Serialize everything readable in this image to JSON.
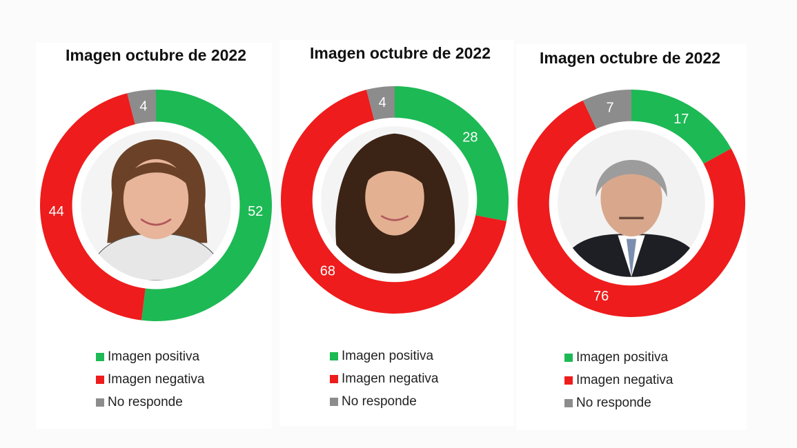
{
  "colors": {
    "positive": "#1db954",
    "negative": "#ee1c1c",
    "no_response": "#8c8c8c",
    "label_text": "#ffffff"
  },
  "legend": [
    {
      "label": "Imagen positiva",
      "color": "#1db954"
    },
    {
      "label": "Imagen negativa",
      "color": "#ee1c1c"
    },
    {
      "label": "No responde",
      "color": "#8c8c8c"
    }
  ],
  "chart_data": [
    {
      "type": "pie",
      "title": "Imagen octubre de 2022",
      "categories": [
        "Imagen positiva",
        "Imagen negativa",
        "No responde"
      ],
      "values": [
        52,
        44,
        4
      ],
      "center_image": "photo-woman-brown-hair"
    },
    {
      "type": "pie",
      "title": "Imagen octubre de 2022",
      "categories": [
        "Imagen positiva",
        "Imagen negativa",
        "No responde"
      ],
      "values": [
        28,
        68,
        4
      ],
      "center_image": "photo-woman-dark-long-hair"
    },
    {
      "type": "pie",
      "title": "Imagen octubre de 2022",
      "categories": [
        "Imagen positiva",
        "Imagen negativa",
        "No responde"
      ],
      "values": [
        17,
        76,
        7
      ],
      "center_image": "photo-man-grey-hair-suit"
    }
  ]
}
